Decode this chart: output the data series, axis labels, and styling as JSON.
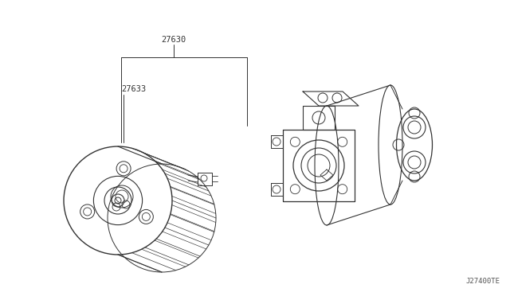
{
  "background_color": "#ffffff",
  "line_color": "#333333",
  "text_color": "#333333",
  "part_number_27630": "27630",
  "part_number_27633": "27633",
  "diagram_code": "J27400TE",
  "fig_width": 6.4,
  "fig_height": 3.72,
  "dpi": 100
}
